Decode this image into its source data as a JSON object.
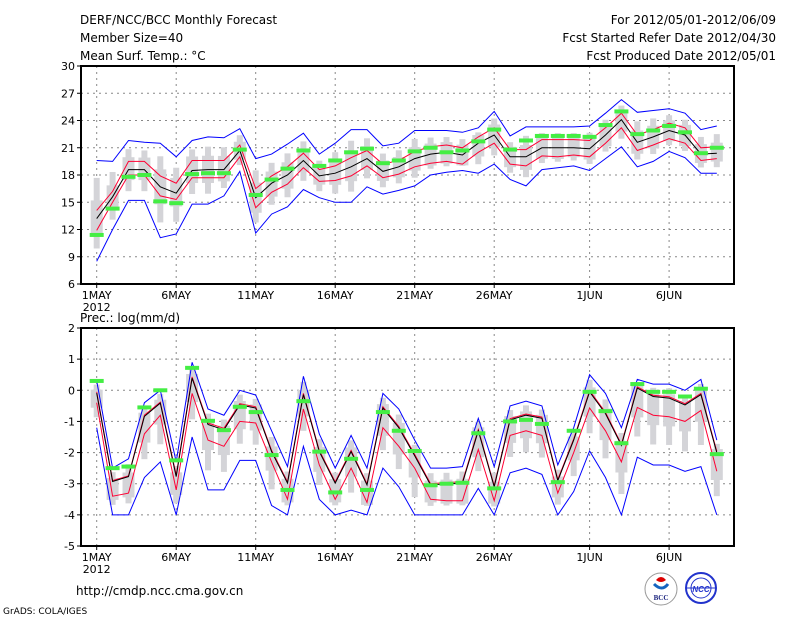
{
  "header": {
    "title": "DERF/NCC/BCC Monthly Forecast",
    "member_size": "Member Size=40",
    "variable": "Mean Surf. Temp.: °C",
    "period": "For 2012/05/01-2012/06/09",
    "started": "Fcst Started Refer Date 2012/04/30",
    "produced": "Fcst Produced Date 2012/05/01"
  },
  "footer": {
    "url": "http://cmdp.ncc.cma.gov.cn",
    "credit": "GrADS: COLA/IGES",
    "logo_bcc": "BCC",
    "logo_ncc": "NCC"
  },
  "colors": {
    "max_min": "#0000ff",
    "spread": "#ff0033",
    "mean": "#000000",
    "observed": "#44ee44",
    "box": "#d4d4d8",
    "grid": "#888888"
  },
  "chart_data": [
    {
      "type": "line",
      "title": "Mean Surf. Temp.: °C",
      "xlabel": "",
      "ylabel": "°C",
      "ylim": [
        6,
        30
      ],
      "yticks": [
        6,
        9,
        12,
        15,
        18,
        21,
        24,
        27,
        30
      ],
      "xticks": [
        {
          "day": 1,
          "label": "1MAY"
        },
        {
          "day": 6,
          "label": "6MAY"
        },
        {
          "day": 11,
          "label": "11MAY"
        },
        {
          "day": 16,
          "label": "16MAY"
        },
        {
          "day": 21,
          "label": "21MAY"
        },
        {
          "day": 26,
          "label": "26MAY"
        },
        {
          "day": 32,
          "label": "1JUN"
        },
        {
          "day": 37,
          "label": "6JUN"
        }
      ],
      "year_label": "2012",
      "grid": true,
      "series": [
        {
          "name": "ensemble max",
          "color": "#0000ff",
          "values": [
            19.6,
            19.5,
            21.8,
            21.6,
            21.5,
            20.0,
            21.8,
            22.2,
            22.1,
            23.1,
            19.8,
            20.3,
            21.4,
            22.6,
            20.3,
            21.5,
            23.0,
            23.0,
            21.2,
            21.5,
            22.9,
            22.9,
            22.9,
            22.7,
            23.2,
            25.0,
            22.3,
            23.3,
            23.3,
            23.3,
            23.3,
            23.4,
            24.8,
            26.3,
            24.9,
            25.1,
            25.3,
            24.8,
            23.0,
            23.4
          ]
        },
        {
          "name": "mean + spread",
          "color": "#ff0033",
          "values": [
            14.1,
            16.2,
            19.5,
            19.5,
            17.9,
            17.1,
            19.6,
            19.6,
            19.6,
            21.3,
            16.5,
            17.9,
            18.9,
            20.4,
            18.6,
            19.0,
            19.9,
            20.7,
            19.2,
            19.6,
            20.6,
            21.1,
            21.3,
            21.0,
            22.2,
            23.2,
            20.8,
            20.8,
            21.9,
            21.9,
            21.9,
            21.8,
            23.2,
            24.8,
            22.4,
            23.0,
            23.7,
            23.2,
            21.0,
            21.1
          ]
        },
        {
          "name": "ensemble mean",
          "color": "#000000",
          "values": [
            13.2,
            15.6,
            18.6,
            18.6,
            16.7,
            16.0,
            18.5,
            18.6,
            18.6,
            20.7,
            15.5,
            17.1,
            18.0,
            19.6,
            17.9,
            18.2,
            18.9,
            19.8,
            18.4,
            18.9,
            19.8,
            20.3,
            20.5,
            20.2,
            21.5,
            22.4,
            20.0,
            20.0,
            21.0,
            21.0,
            21.0,
            20.9,
            22.4,
            24.1,
            21.6,
            22.2,
            22.9,
            22.4,
            20.3,
            20.4
          ]
        },
        {
          "name": "mean - spread",
          "color": "#ff0033",
          "values": [
            11.9,
            15.0,
            18.0,
            18.0,
            15.7,
            15.3,
            17.7,
            17.7,
            17.7,
            20.0,
            14.4,
            16.1,
            17.0,
            18.8,
            17.3,
            17.4,
            17.9,
            19.0,
            17.7,
            18.1,
            18.9,
            19.3,
            19.5,
            19.2,
            20.5,
            21.5,
            19.2,
            19.0,
            20.1,
            20.0,
            20.2,
            20.0,
            21.5,
            23.2,
            20.7,
            21.3,
            22.0,
            21.5,
            19.6,
            19.8
          ]
        },
        {
          "name": "ensemble min",
          "color": "#0000ff",
          "values": [
            8.5,
            12.0,
            15.2,
            15.2,
            11.1,
            11.5,
            14.8,
            14.8,
            15.7,
            18.4,
            11.6,
            13.7,
            14.5,
            16.4,
            15.5,
            15.0,
            15.0,
            16.7,
            15.9,
            16.3,
            16.8,
            18.0,
            18.3,
            18.5,
            18.2,
            19.2,
            17.5,
            16.8,
            18.6,
            18.8,
            19.0,
            18.5,
            19.8,
            21.1,
            18.9,
            19.5,
            20.6,
            19.9,
            18.2,
            18.2
          ]
        },
        {
          "name": "observed",
          "color": "#44ee44",
          "values": [
            11.4,
            14.3,
            17.8,
            18.0,
            15.1,
            14.9,
            18.1,
            18.2,
            18.2,
            20.8,
            15.8,
            17.5,
            18.7,
            20.7,
            19.0,
            19.6,
            20.5,
            20.9,
            19.3,
            19.6,
            20.6,
            21.0,
            20.5,
            20.7,
            21.7,
            23.0,
            20.8,
            21.8,
            22.3,
            22.3,
            22.3,
            22.2,
            23.5,
            25.0,
            22.5,
            22.9,
            23.4,
            22.7,
            20.4,
            21.0
          ]
        }
      ]
    },
    {
      "type": "line",
      "title": "Prec.: log(mm/d)",
      "xlabel": "",
      "ylabel": "log(mm/d)",
      "ylim": [
        -5,
        2
      ],
      "yticks": [
        -5,
        -4,
        -3,
        -2,
        -1,
        0,
        1,
        2
      ],
      "xticks": [
        {
          "day": 1,
          "label": "1MAY"
        },
        {
          "day": 6,
          "label": "6MAY"
        },
        {
          "day": 11,
          "label": "11MAY"
        },
        {
          "day": 16,
          "label": "16MAY"
        },
        {
          "day": 21,
          "label": "21MAY"
        },
        {
          "day": 26,
          "label": "26MAY"
        },
        {
          "day": 32,
          "label": "1JUN"
        },
        {
          "day": 37,
          "label": "6JUN"
        }
      ],
      "year_label": "2012",
      "grid": true,
      "series": [
        {
          "name": "ensemble max",
          "color": "#0000ff",
          "values": [
            0.3,
            -2.5,
            -2.2,
            -0.4,
            0.0,
            -2.3,
            0.9,
            -0.6,
            -0.8,
            0.0,
            -0.15,
            -1.3,
            -2.45,
            0.45,
            -1.4,
            -2.5,
            -1.45,
            -2.5,
            -0.1,
            -0.6,
            -1.6,
            -2.5,
            -2.5,
            -2.45,
            -0.9,
            -2.45,
            -0.5,
            -0.35,
            -0.5,
            -2.4,
            -1.2,
            0.5,
            -0.1,
            -1.2,
            0.35,
            0.2,
            0.2,
            0.0,
            0.35,
            -1.6
          ]
        },
        {
          "name": "mean + spread",
          "color": "#ff0033",
          "values": [
            -0.05,
            -2.9,
            -2.75,
            -0.8,
            -0.38,
            -2.72,
            0.43,
            -1.05,
            -1.22,
            -0.43,
            -0.53,
            -1.93,
            -2.94,
            -0.1,
            -1.93,
            -2.94,
            -1.93,
            -3.0,
            -0.53,
            -1.16,
            -2.06,
            -3.0,
            -2.96,
            -2.94,
            -1.26,
            -3.06,
            -0.91,
            -0.76,
            -0.86,
            -2.86,
            -1.56,
            -0.01,
            -0.71,
            -1.73,
            0.11,
            -0.16,
            -0.21,
            -0.43,
            -0.1,
            -1.96
          ]
        },
        {
          "name": "ensemble mean",
          "color": "#000000",
          "values": [
            -0.09,
            -2.93,
            -2.77,
            -0.84,
            -0.41,
            -2.77,
            0.39,
            -1.1,
            -1.27,
            -0.47,
            -0.57,
            -1.97,
            -2.98,
            -0.14,
            -1.97,
            -2.98,
            -1.97,
            -3.04,
            -0.57,
            -1.2,
            -2.1,
            -3.04,
            -3.0,
            -2.98,
            -1.3,
            -3.1,
            -0.95,
            -0.8,
            -0.9,
            -2.9,
            -1.6,
            -0.05,
            -0.75,
            -1.77,
            0.07,
            -0.2,
            -0.25,
            -0.47,
            -0.14,
            -2.0
          ]
        },
        {
          "name": "mean - spread",
          "color": "#ff0033",
          "values": [
            -0.4,
            -3.4,
            -3.3,
            -1.4,
            -0.8,
            -3.2,
            -0.1,
            -1.6,
            -1.8,
            -1.0,
            -1.05,
            -2.3,
            -3.5,
            -0.6,
            -2.4,
            -3.5,
            -2.5,
            -3.6,
            -1.2,
            -1.8,
            -2.5,
            -3.5,
            -3.55,
            -3.55,
            -1.9,
            -3.55,
            -1.45,
            -1.3,
            -1.45,
            -3.3,
            -2.0,
            -0.57,
            -1.3,
            -2.3,
            -0.55,
            -0.8,
            -0.85,
            -1.0,
            -0.65,
            -2.6
          ]
        },
        {
          "name": "ensemble min",
          "color": "#0000ff",
          "values": [
            -1.2,
            -4,
            -4,
            -2.8,
            -2.3,
            -4,
            -1.5,
            -3.2,
            -3.2,
            -2.25,
            -2.25,
            -3.7,
            -4,
            -1.8,
            -3.5,
            -4,
            -3.85,
            -4,
            -2.5,
            -3.1,
            -4,
            -4,
            -4,
            -4,
            -3.15,
            -4,
            -2.65,
            -2.5,
            -2.7,
            -4,
            -3.25,
            -1.95,
            -2.8,
            -4,
            -2.15,
            -2.4,
            -2.4,
            -2.6,
            -2.45,
            -4
          ]
        },
        {
          "name": "observed",
          "color": "#44ee44",
          "values": [
            0.3,
            -2.5,
            -2.45,
            -0.55,
            0.0,
            -2.25,
            0.72,
            -0.98,
            -1.28,
            -0.53,
            -0.7,
            -2.08,
            -3.2,
            -0.35,
            -1.97,
            -3.28,
            -2.2,
            -3.2,
            -0.7,
            -1.3,
            -1.95,
            -3.05,
            -3.0,
            -2.97,
            -1.38,
            -3.15,
            -1.0,
            -0.95,
            -1.08,
            -2.95,
            -1.3,
            -0.05,
            -0.67,
            -1.7,
            0.2,
            -0.05,
            -0.05,
            -0.2,
            0.05,
            -2.05
          ]
        }
      ]
    }
  ]
}
